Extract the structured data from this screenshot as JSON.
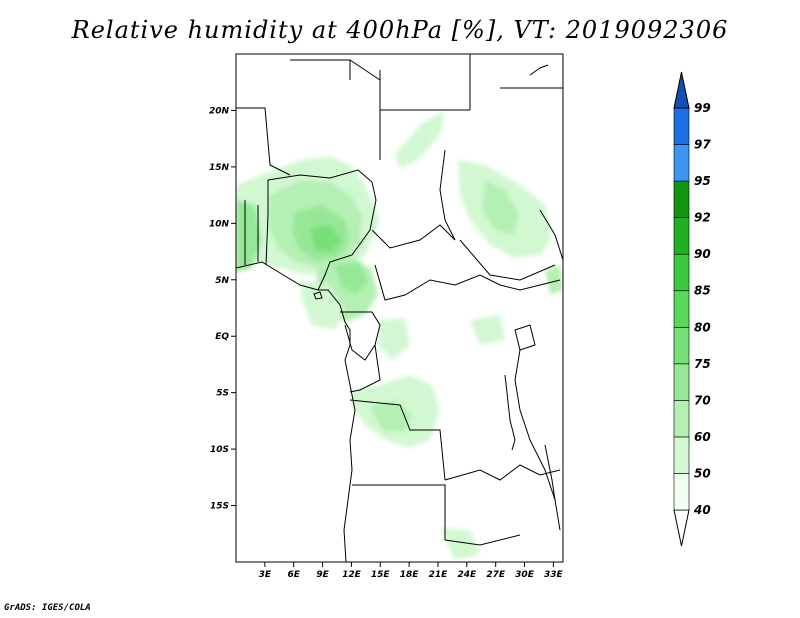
{
  "title": "Relative humidity at 400hPa [%], VT: 2019092306",
  "footer": "GrADS: IGES/COLA",
  "map": {
    "lon_range": [
      0,
      34
    ],
    "lat_range": [
      -20,
      25
    ],
    "lat_ticks": [
      {
        "lat": 20,
        "label": "20N"
      },
      {
        "lat": 15,
        "label": "15N"
      },
      {
        "lat": 10,
        "label": "10N"
      },
      {
        "lat": 5,
        "label": "5N"
      },
      {
        "lat": 0,
        "label": "EQ"
      },
      {
        "lat": -5,
        "label": "5S"
      },
      {
        "lat": -10,
        "label": "10S"
      },
      {
        "lat": -15,
        "label": "15S"
      }
    ],
    "lon_ticks": [
      {
        "lon": 3,
        "label": "3E"
      },
      {
        "lon": 6,
        "label": "6E"
      },
      {
        "lon": 9,
        "label": "9E"
      },
      {
        "lon": 12,
        "label": "12E"
      },
      {
        "lon": 15,
        "label": "15E"
      },
      {
        "lon": 18,
        "label": "18E"
      },
      {
        "lon": 21,
        "label": "21E"
      },
      {
        "lon": 24,
        "label": "24E"
      },
      {
        "lon": 27,
        "label": "27E"
      },
      {
        "lon": 30,
        "label": "30E"
      },
      {
        "lon": 33,
        "label": "33E"
      }
    ]
  },
  "colorbar": {
    "levels": [
      "40",
      "50",
      "60",
      "70",
      "75",
      "80",
      "85",
      "90",
      "92",
      "95",
      "97",
      "99"
    ],
    "colors": [
      "#f0fff0",
      "#d2f8d2",
      "#b4f0b4",
      "#96e896",
      "#78e078",
      "#5ad85a",
      "#3cc83c",
      "#22b022",
      "#129612",
      "#3c96f0",
      "#1e6ee6",
      "#1450b4"
    ],
    "under_color": "#ffffff",
    "over_color": "#1450b4"
  }
}
